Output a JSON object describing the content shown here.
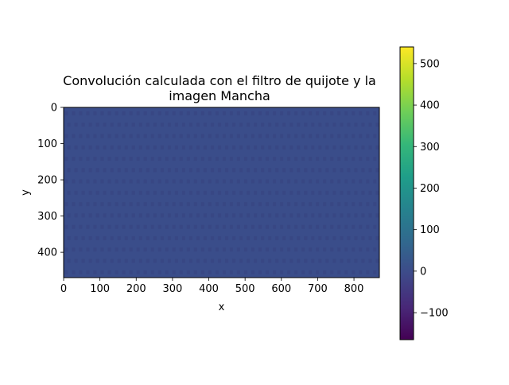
{
  "chart_data": {
    "type": "heatmap",
    "title_line1": "Convolución calculada con el filtro de quijote y la",
    "title_line2": "imagen Mancha",
    "xlabel": "x",
    "ylabel": "y",
    "xlim": [
      0,
      870
    ],
    "ylim": [
      470,
      0
    ],
    "x_ticks": [
      0,
      100,
      200,
      300,
      400,
      500,
      600,
      700,
      800
    ],
    "y_ticks": [
      0,
      100,
      200,
      300,
      400
    ],
    "colorbar": {
      "colormap": "viridis",
      "range": [
        -165,
        540
      ],
      "ticks": [
        500,
        400,
        300,
        200,
        100,
        0,
        -100
      ],
      "tick_labels": [
        "500",
        "400",
        "300",
        "200",
        "100",
        "0",
        "−100"
      ]
    },
    "dominant_value": 0,
    "dominant_color": "#3a4d8a",
    "pattern_color": "#36437f",
    "pattern_note_rows": 15,
    "pattern_note_cols": 44
  }
}
